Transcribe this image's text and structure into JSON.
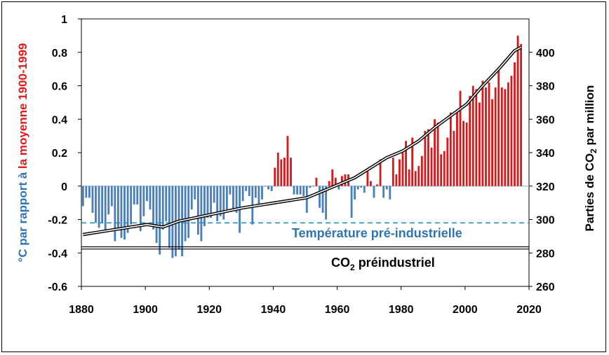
{
  "chart_data": {
    "type": "bar",
    "ylabel_left_parts": [
      {
        "text": "°C par rapport à ",
        "color": "#2e75b6"
      },
      {
        "text": "la moyenne 1900-1999",
        "color": "#e31a1c"
      }
    ],
    "ylabel_right_text": "Parties de CO",
    "ylabel_right_sub": "2",
    "ylabel_right_tail": " par million",
    "xlim": [
      1880,
      2020
    ],
    "ylim_left": [
      -0.6,
      1.0
    ],
    "ylim_right": [
      260,
      420
    ],
    "x_ticks": [
      "1880",
      "1900",
      "1920",
      "1940",
      "1960",
      "1980",
      "2000",
      "2020"
    ],
    "y_ticks_left": [
      "-0.6",
      "-0.4",
      "-0.2",
      "0",
      "0.2",
      "0.4",
      "0.6",
      "0.8",
      "1"
    ],
    "y_ticks_right": [
      "260",
      "280",
      "300",
      "320",
      "340",
      "360",
      "380",
      "400"
    ],
    "colors": {
      "positive": "#d7191c",
      "negative": "#4a7ebb",
      "preindustrial_temp": "#2e8bc0",
      "co2": "#000000"
    },
    "temperature_anomaly": {
      "years": [
        1880,
        1881,
        1882,
        1883,
        1884,
        1885,
        1886,
        1887,
        1888,
        1889,
        1890,
        1891,
        1892,
        1893,
        1894,
        1895,
        1896,
        1897,
        1898,
        1899,
        1900,
        1901,
        1902,
        1903,
        1904,
        1905,
        1906,
        1907,
        1908,
        1909,
        1910,
        1911,
        1912,
        1913,
        1914,
        1915,
        1916,
        1917,
        1918,
        1919,
        1920,
        1921,
        1922,
        1923,
        1924,
        1925,
        1926,
        1927,
        1928,
        1929,
        1930,
        1931,
        1932,
        1933,
        1934,
        1935,
        1936,
        1937,
        1938,
        1939,
        1940,
        1941,
        1942,
        1943,
        1944,
        1945,
        1946,
        1947,
        1948,
        1949,
        1950,
        1951,
        1952,
        1953,
        1954,
        1955,
        1956,
        1957,
        1958,
        1959,
        1960,
        1961,
        1962,
        1963,
        1964,
        1965,
        1966,
        1967,
        1968,
        1969,
        1970,
        1971,
        1972,
        1973,
        1974,
        1975,
        1976,
        1977,
        1978,
        1979,
        1980,
        1981,
        1982,
        1983,
        1984,
        1985,
        1986,
        1987,
        1988,
        1989,
        1990,
        1991,
        1992,
        1993,
        1994,
        1995,
        1996,
        1997,
        1998,
        1999,
        2000,
        2001,
        2002,
        2003,
        2004,
        2005,
        2006,
        2007,
        2008,
        2009,
        2010,
        2011,
        2012,
        2013,
        2014,
        2015,
        2016,
        2017
      ],
      "values": [
        -0.12,
        -0.07,
        -0.07,
        -0.16,
        -0.22,
        -0.25,
        -0.22,
        -0.27,
        -0.17,
        -0.12,
        -0.33,
        -0.26,
        -0.31,
        -0.32,
        -0.28,
        -0.23,
        -0.11,
        -0.11,
        -0.27,
        -0.18,
        -0.09,
        -0.14,
        -0.26,
        -0.34,
        -0.41,
        -0.26,
        -0.21,
        -0.37,
        -0.43,
        -0.42,
        -0.38,
        -0.42,
        -0.33,
        -0.31,
        -0.14,
        -0.08,
        -0.29,
        -0.33,
        -0.24,
        -0.19,
        -0.19,
        -0.1,
        -0.21,
        -0.18,
        -0.2,
        -0.14,
        -0.05,
        -0.14,
        -0.16,
        -0.28,
        -0.09,
        -0.03,
        -0.06,
        -0.23,
        -0.07,
        -0.12,
        -0.08,
        0.0,
        -0.02,
        -0.03,
        0.11,
        0.2,
        0.16,
        0.17,
        0.3,
        0.17,
        -0.05,
        -0.05,
        -0.05,
        -0.06,
        -0.16,
        -0.01,
        0.0,
        0.05,
        -0.13,
        -0.16,
        -0.2,
        0.03,
        0.1,
        0.05,
        -0.02,
        0.06,
        0.07,
        0.07,
        -0.19,
        -0.08,
        -0.02,
        -0.01,
        -0.04,
        0.1,
        0.03,
        -0.07,
        0.01,
        0.16,
        -0.07,
        -0.02,
        -0.08,
        0.17,
        0.07,
        0.16,
        0.2,
        0.27,
        0.1,
        0.29,
        0.09,
        0.12,
        0.18,
        0.33,
        0.34,
        0.23,
        0.4,
        0.38,
        0.19,
        0.21,
        0.29,
        0.44,
        0.33,
        0.44,
        0.57,
        0.39,
        0.38,
        0.54,
        0.6,
        0.58,
        0.5,
        0.63,
        0.59,
        0.62,
        0.52,
        0.59,
        0.7,
        0.59,
        0.58,
        0.62,
        0.66,
        0.74,
        0.9,
        0.85
      ],
      "preindustrial": -0.22
    },
    "co2": {
      "years": [
        1880,
        1890,
        1900,
        1905,
        1910,
        1920,
        1930,
        1940,
        1950,
        1955,
        1960,
        1965,
        1970,
        1975,
        1980,
        1985,
        1990,
        1995,
        2000,
        2005,
        2010,
        2015,
        2017
      ],
      "values": [
        291,
        294,
        297,
        295.5,
        299,
        303,
        307,
        310,
        313,
        317,
        321,
        325,
        331,
        337,
        341,
        347,
        355,
        362,
        369,
        380,
        390,
        401,
        403
      ],
      "preindustrial": 283
    },
    "annotations": {
      "temp_text": "Température pré-industrielle",
      "co2_text_main": "CO",
      "co2_text_sub": "2",
      "co2_text_tail": " préindustriel"
    }
  }
}
